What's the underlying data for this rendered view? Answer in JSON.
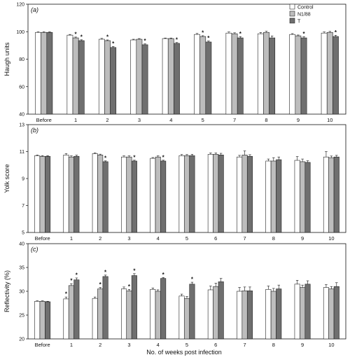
{
  "colors": {
    "control": "#ffffff",
    "n1_88": "#bdbdbd",
    "t": "#6f6f6f",
    "axis": "#111111",
    "bar_outline": "#222222"
  },
  "legend": {
    "entries": [
      "Control",
      "N1/88",
      "T"
    ]
  },
  "x_axis_label": "No. of weeks post infection",
  "chart_data": [
    {
      "type": "bar",
      "panel_label": "(a)",
      "ylabel": "Haugh units",
      "ylim": [
        40,
        120
      ],
      "yticks": [
        40,
        60,
        80,
        100,
        120
      ],
      "categories": [
        "Before",
        "1",
        "2",
        "3",
        "4",
        "5",
        "7",
        "8",
        "9",
        "10"
      ],
      "series": [
        {
          "name": "Control",
          "values": [
            99.5,
            97.5,
            94.5,
            94,
            95,
            98,
            99,
            98.5,
            98,
            99
          ],
          "errors": [
            0.4,
            0.5,
            0.6,
            0.5,
            0.4,
            0.7,
            0.8,
            0.9,
            0.6,
            0.8
          ]
        },
        {
          "name": "N1/88",
          "values": [
            99.5,
            95.5,
            93.5,
            94.5,
            95,
            96.5,
            98.5,
            99.5,
            97,
            99.5
          ],
          "errors": [
            0.4,
            0.6,
            0.5,
            0.5,
            0.4,
            0.6,
            0.7,
            0.8,
            0.6,
            0.7
          ]
        },
        {
          "name": "T",
          "values": [
            99.5,
            93.5,
            88.5,
            90.5,
            91.5,
            92.5,
            95.5,
            95.5,
            95.5,
            96.5
          ],
          "errors": [
            0.4,
            0.6,
            0.7,
            0.6,
            0.6,
            0.7,
            0.9,
            1.4,
            0.8,
            0.9
          ]
        }
      ],
      "significance": [
        [],
        [
          "N1/88",
          "T"
        ],
        [
          "N1/88",
          "T"
        ],
        [
          "T"
        ],
        [
          "T"
        ],
        [
          "N1/88",
          "T"
        ],
        [
          "T"
        ],
        [],
        [
          "T"
        ],
        [
          "T"
        ]
      ]
    },
    {
      "type": "bar",
      "panel_label": "(b)",
      "ylabel": "Yolk score",
      "ylim": [
        5,
        13
      ],
      "yticks": [
        5,
        7,
        9,
        11,
        13
      ],
      "categories": [
        "Before",
        "1",
        "2",
        "3",
        "4",
        "5",
        "6",
        "7",
        "8",
        "9",
        "10"
      ],
      "series": [
        {
          "name": "Control",
          "values": [
            10.7,
            10.75,
            10.85,
            10.6,
            10.5,
            10.7,
            10.8,
            10.6,
            10.3,
            10.35,
            10.6
          ],
          "errors": [
            0.05,
            0.1,
            0.06,
            0.08,
            0.06,
            0.08,
            0.1,
            0.12,
            0.15,
            0.28,
            0.4
          ]
        },
        {
          "name": "N1/88",
          "values": [
            10.65,
            10.6,
            10.75,
            10.6,
            10.6,
            10.7,
            10.8,
            10.75,
            10.3,
            10.25,
            10.55
          ],
          "errors": [
            0.05,
            0.08,
            0.06,
            0.08,
            0.08,
            0.08,
            0.1,
            0.3,
            0.25,
            0.2,
            0.12
          ]
        },
        {
          "name": "T",
          "values": [
            10.65,
            10.65,
            10.25,
            10.3,
            10.3,
            10.7,
            10.75,
            10.65,
            10.4,
            10.2,
            10.6
          ],
          "errors": [
            0.05,
            0.08,
            0.06,
            0.06,
            0.06,
            0.1,
            0.12,
            0.12,
            0.2,
            0.12,
            0.12
          ]
        }
      ],
      "significance": [
        [],
        [],
        [
          "T"
        ],
        [
          "T"
        ],
        [
          "T"
        ],
        [],
        [],
        [],
        [],
        [],
        []
      ]
    },
    {
      "type": "bar",
      "panel_label": "(c)",
      "ylabel": "Reflectivity (%)",
      "ylim": [
        20,
        40
      ],
      "yticks": [
        20,
        25,
        30,
        35,
        40
      ],
      "categories": [
        "Before",
        "1",
        "2",
        "3",
        "4",
        "5",
        "6",
        "7",
        "8",
        "9",
        "10"
      ],
      "series": [
        {
          "name": "Control",
          "values": [
            27.9,
            28.4,
            28.5,
            30.5,
            30.4,
            29,
            30.3,
            30,
            30.4,
            31.5,
            30.8
          ],
          "errors": [
            0.1,
            0.4,
            0.3,
            0.4,
            0.3,
            0.4,
            0.8,
            0.8,
            0.7,
            0.8,
            0.6
          ]
        },
        {
          "name": "N1/88",
          "values": [
            27.9,
            31.2,
            30.5,
            30.1,
            30,
            28.5,
            31,
            30.1,
            30,
            30.8,
            30.5
          ],
          "errors": [
            0.1,
            0.4,
            0.3,
            0.3,
            0.3,
            0.4,
            0.7,
            0.8,
            0.6,
            0.5,
            0.5
          ]
        },
        {
          "name": "T",
          "values": [
            27.8,
            32.4,
            33.1,
            33.3,
            32.7,
            31.5,
            32,
            30.1,
            30.5,
            31.5,
            31
          ],
          "errors": [
            0.1,
            0.4,
            0.3,
            0.4,
            0.2,
            0.4,
            0.7,
            0.8,
            0.8,
            0.7,
            0.8
          ]
        }
      ],
      "significance": [
        [],
        [
          "Control",
          "N1/88",
          "T"
        ],
        [
          "N1/88",
          "T"
        ],
        [
          "N1/88",
          "T"
        ],
        [
          "T"
        ],
        [
          "T"
        ],
        [],
        [],
        [],
        [],
        []
      ]
    }
  ]
}
